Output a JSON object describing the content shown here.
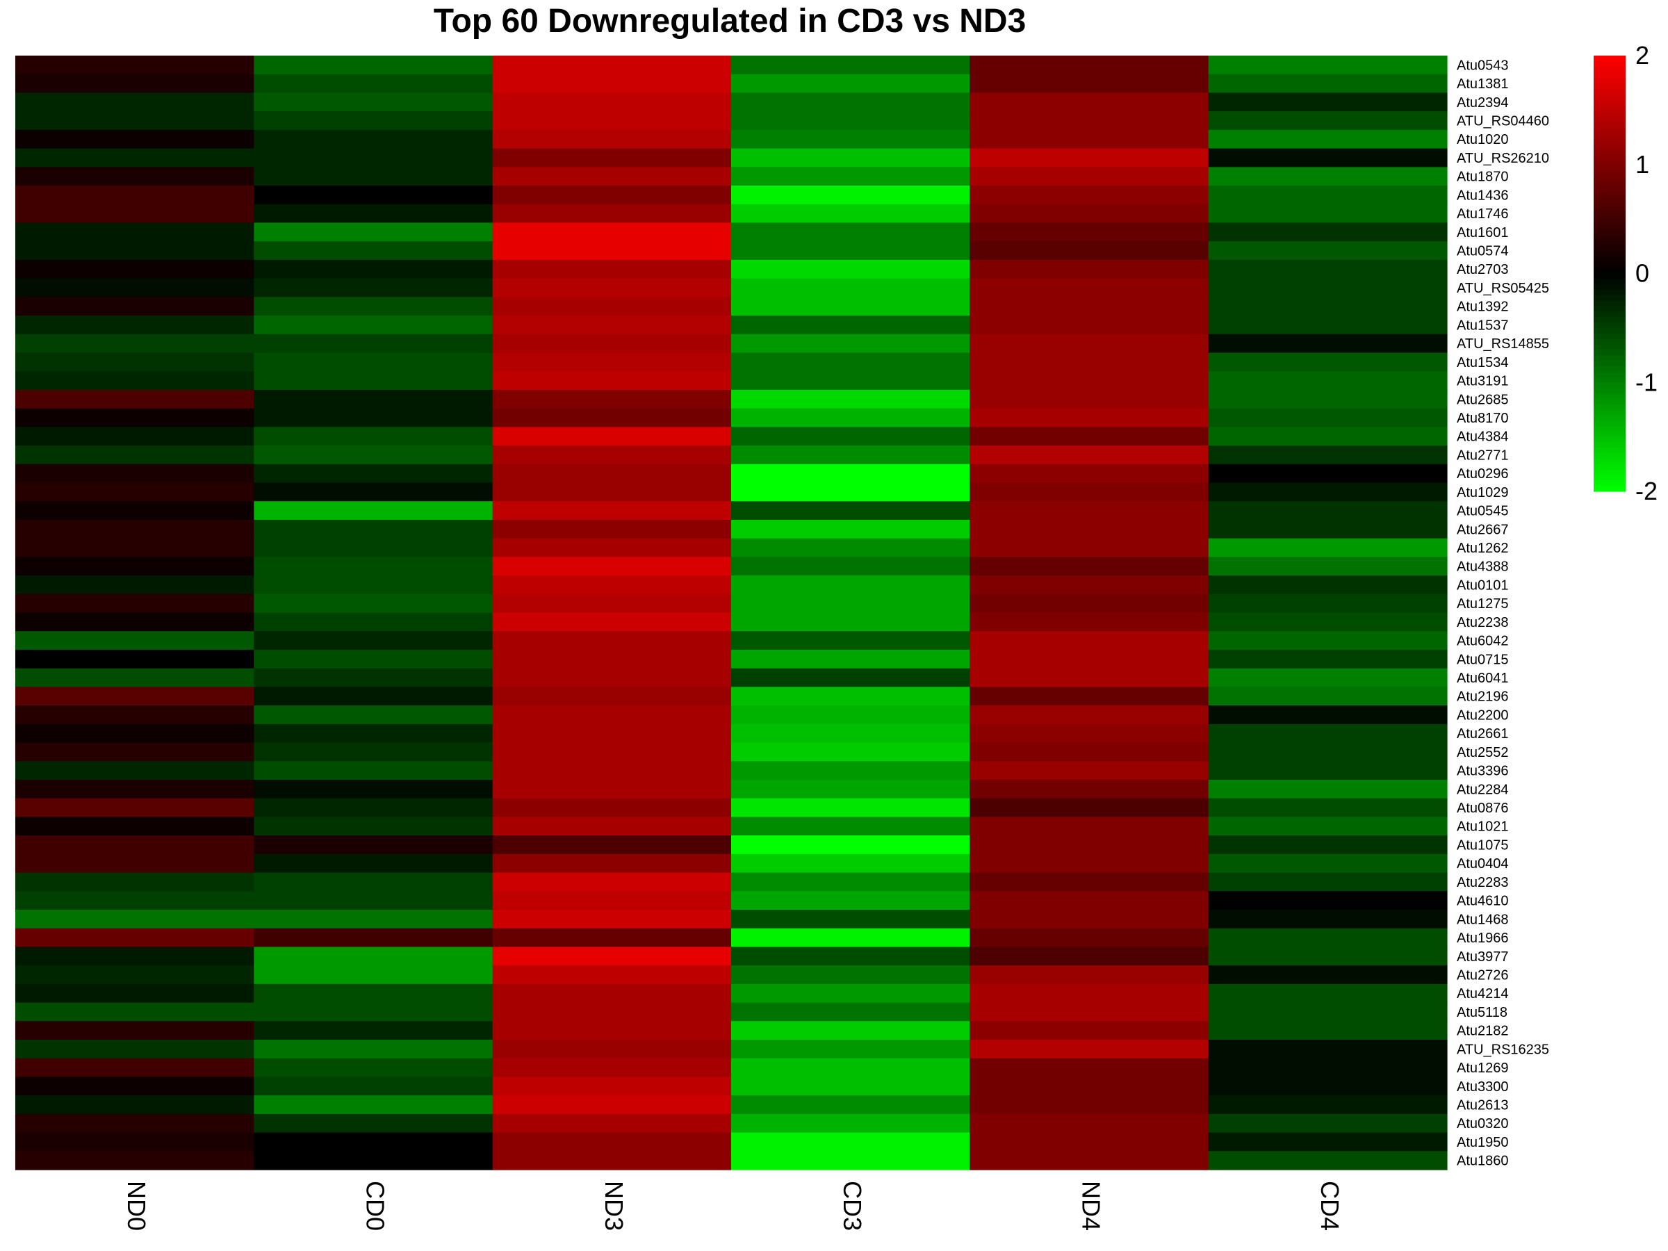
{
  "chart_data": {
    "type": "heatmap",
    "title": "Top 60 Downregulated in CD3 vs ND3",
    "columns": [
      "ND0",
      "CD0",
      "ND3",
      "CD3",
      "ND4",
      "CD4"
    ],
    "rows": [
      "Atu0543",
      "Atu1381",
      "Atu2394",
      "ATU_RS04460",
      "Atu1020",
      "ATU_RS26210",
      "Atu1870",
      "Atu1436",
      "Atu1746",
      "Atu1601",
      "Atu0574",
      "Atu2703",
      "ATU_RS05425",
      "Atu1392",
      "Atu1537",
      "ATU_RS14855",
      "Atu1534",
      "Atu3191",
      "Atu2685",
      "Atu8170",
      "Atu4384",
      "Atu2771",
      "Atu0296",
      "Atu1029",
      "Atu0545",
      "Atu2667",
      "Atu1262",
      "Atu4388",
      "Atu0101",
      "Atu1275",
      "Atu2238",
      "Atu6042",
      "Atu0715",
      "Atu6041",
      "Atu2196",
      "Atu2200",
      "Atu2661",
      "Atu2552",
      "Atu3396",
      "Atu2284",
      "Atu0876",
      "Atu1021",
      "Atu1075",
      "Atu0404",
      "Atu2283",
      "Atu4610",
      "Atu1468",
      "Atu1966",
      "Atu3977",
      "Atu2726",
      "Atu4214",
      "Atu5118",
      "Atu2182",
      "ATU_RS16235",
      "Atu1269",
      "Atu3300",
      "Atu2613",
      "Atu0320",
      "Atu1950",
      "Atu1860"
    ],
    "values": [
      [
        0.3,
        -0.8,
        1.6,
        -0.9,
        0.8,
        -1.0
      ],
      [
        0.2,
        -0.6,
        1.6,
        -1.2,
        0.8,
        -0.8
      ],
      [
        -0.3,
        -0.7,
        1.5,
        -0.9,
        1.1,
        -0.3
      ],
      [
        -0.3,
        -0.5,
        1.5,
        -0.9,
        1.1,
        -0.6
      ],
      [
        0.1,
        -0.3,
        1.4,
        -1.0,
        1.1,
        -1.0
      ],
      [
        -0.3,
        -0.3,
        1.0,
        -1.5,
        1.5,
        -0.1
      ],
      [
        0.2,
        -0.3,
        1.3,
        -1.2,
        1.3,
        -1.0
      ],
      [
        0.5,
        0.0,
        1.0,
        -1.9,
        1.1,
        -0.8
      ],
      [
        0.5,
        -0.2,
        1.2,
        -1.6,
        1.0,
        -0.8
      ],
      [
        -0.2,
        -1.0,
        1.8,
        -1.0,
        0.8,
        -0.4
      ],
      [
        -0.2,
        -0.6,
        1.8,
        -1.0,
        0.7,
        -0.7
      ],
      [
        0.1,
        -0.2,
        1.3,
        -1.7,
        1.0,
        -0.5
      ],
      [
        -0.1,
        -0.3,
        1.4,
        -1.5,
        1.1,
        -0.5
      ],
      [
        0.2,
        -0.6,
        1.3,
        -1.5,
        1.1,
        -0.5
      ],
      [
        -0.3,
        -0.8,
        1.4,
        -0.8,
        1.1,
        -0.5
      ],
      [
        -0.5,
        -0.5,
        1.3,
        -1.2,
        1.2,
        -0.1
      ],
      [
        -0.4,
        -0.6,
        1.4,
        -0.9,
        1.2,
        -0.7
      ],
      [
        -0.3,
        -0.6,
        1.5,
        -0.9,
        1.2,
        -0.8
      ],
      [
        0.6,
        -0.2,
        1.0,
        -1.7,
        1.2,
        -0.8
      ],
      [
        0.1,
        -0.2,
        0.9,
        -1.4,
        1.3,
        -0.7
      ],
      [
        -0.2,
        -0.6,
        1.7,
        -0.8,
        0.9,
        -0.8
      ],
      [
        -0.4,
        -0.7,
        1.3,
        -1.1,
        1.4,
        -0.4
      ],
      [
        0.2,
        -0.3,
        1.2,
        -2.0,
        1.1,
        0.0
      ],
      [
        0.3,
        -0.1,
        1.2,
        -2.0,
        1.0,
        -0.2
      ],
      [
        0.1,
        -1.4,
        1.5,
        -0.6,
        1.1,
        -0.4
      ],
      [
        0.3,
        -0.5,
        1.1,
        -1.6,
        1.1,
        -0.4
      ],
      [
        0.3,
        -0.5,
        1.3,
        -1.1,
        1.1,
        -1.2
      ],
      [
        0.1,
        -0.6,
        1.7,
        -0.9,
        0.8,
        -0.9
      ],
      [
        -0.2,
        -0.6,
        1.5,
        -1.3,
        1.0,
        -0.4
      ],
      [
        0.3,
        -0.7,
        1.4,
        -1.3,
        0.9,
        -0.5
      ],
      [
        0.1,
        -0.5,
        1.6,
        -1.3,
        1.0,
        -0.6
      ],
      [
        -0.7,
        -0.3,
        1.3,
        -0.7,
        1.3,
        -0.8
      ],
      [
        0.0,
        -0.6,
        1.3,
        -1.3,
        1.3,
        -0.5
      ],
      [
        -0.6,
        -0.4,
        1.3,
        -0.5,
        1.3,
        -1.0
      ],
      [
        0.7,
        -0.2,
        1.2,
        -1.5,
        0.8,
        -0.9
      ],
      [
        0.3,
        -0.7,
        1.3,
        -1.4,
        1.2,
        -0.1
      ],
      [
        0.1,
        -0.3,
        1.3,
        -1.5,
        1.1,
        -0.5
      ],
      [
        0.3,
        -0.4,
        1.3,
        -1.6,
        1.0,
        -0.5
      ],
      [
        -0.3,
        -0.6,
        1.3,
        -1.2,
        1.2,
        -0.5
      ],
      [
        0.2,
        -0.1,
        1.3,
        -1.3,
        0.9,
        -1.0
      ],
      [
        0.7,
        -0.3,
        1.1,
        -1.8,
        0.6,
        -0.6
      ],
      [
        0.1,
        -0.4,
        1.3,
        -1.1,
        1.0,
        -0.8
      ],
      [
        0.5,
        0.2,
        0.6,
        -2.0,
        1.0,
        -0.4
      ],
      [
        0.5,
        -0.2,
        1.1,
        -1.6,
        1.0,
        -0.7
      ],
      [
        -0.4,
        -0.5,
        1.6,
        -1.1,
        0.8,
        -0.5
      ],
      [
        -0.5,
        -0.5,
        1.5,
        -1.3,
        1.0,
        0.0
      ],
      [
        -0.9,
        -0.9,
        1.6,
        -0.6,
        1.0,
        -0.1
      ],
      [
        0.8,
        0.5,
        0.8,
        -1.9,
        0.8,
        -0.6
      ],
      [
        -0.2,
        -1.2,
        1.8,
        -0.6,
        0.6,
        -0.6
      ],
      [
        -0.3,
        -1.2,
        1.5,
        -0.9,
        1.2,
        -0.1
      ],
      [
        -0.2,
        -0.6,
        1.3,
        -1.2,
        1.3,
        -0.6
      ],
      [
        -0.6,
        -0.6,
        1.3,
        -0.9,
        1.3,
        -0.6
      ],
      [
        0.3,
        -0.3,
        1.3,
        -1.6,
        1.1,
        -0.6
      ],
      [
        -0.4,
        -0.9,
        1.2,
        -1.2,
        1.4,
        -0.1
      ],
      [
        0.5,
        -0.6,
        1.3,
        -1.5,
        0.9,
        -0.1
      ],
      [
        0.1,
        -0.5,
        1.5,
        -1.5,
        0.9,
        -0.1
      ],
      [
        -0.2,
        -1.0,
        1.6,
        -1.1,
        0.9,
        -0.2
      ],
      [
        0.3,
        -0.4,
        1.3,
        -1.4,
        1.0,
        -0.5
      ],
      [
        0.2,
        0.0,
        1.1,
        -1.9,
        1.0,
        -0.2
      ],
      [
        0.3,
        0.0,
        1.1,
        -1.9,
        1.0,
        -0.6
      ]
    ],
    "color_scale": {
      "low": -2,
      "mid": 0,
      "high": 2,
      "low_color": "#00ff00",
      "mid_color": "#000000",
      "high_color": "#ff0000"
    },
    "legend_ticks": [
      2,
      1,
      0,
      -1,
      -2
    ],
    "legend_tick_labels": [
      "2",
      "1",
      "0",
      "-1",
      "-2"
    ],
    "legend_position": "top-right"
  }
}
